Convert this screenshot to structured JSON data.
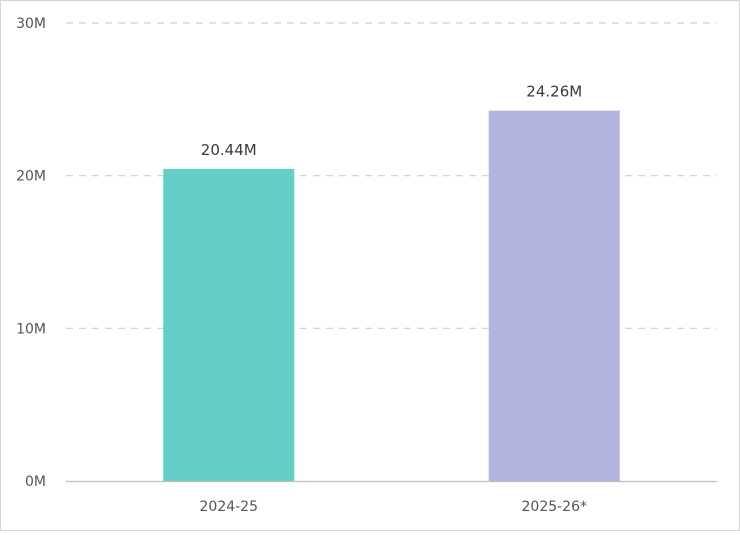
{
  "chart_data": {
    "type": "bar",
    "title": "",
    "xlabel": "",
    "ylabel": "",
    "categories": [
      "2024-25",
      "2025-26*"
    ],
    "values": [
      20.44,
      24.26
    ],
    "data_labels": [
      "20.44M",
      "24.26M"
    ],
    "colors": [
      "#65cfc7",
      "#b3b5df"
    ],
    "ylim": [
      0,
      30
    ],
    "yticks": [
      0,
      10,
      20,
      30
    ],
    "ytick_labels": [
      "0M",
      "10M",
      "20M",
      "30M"
    ],
    "grid": true,
    "grid_style": "dashed"
  }
}
